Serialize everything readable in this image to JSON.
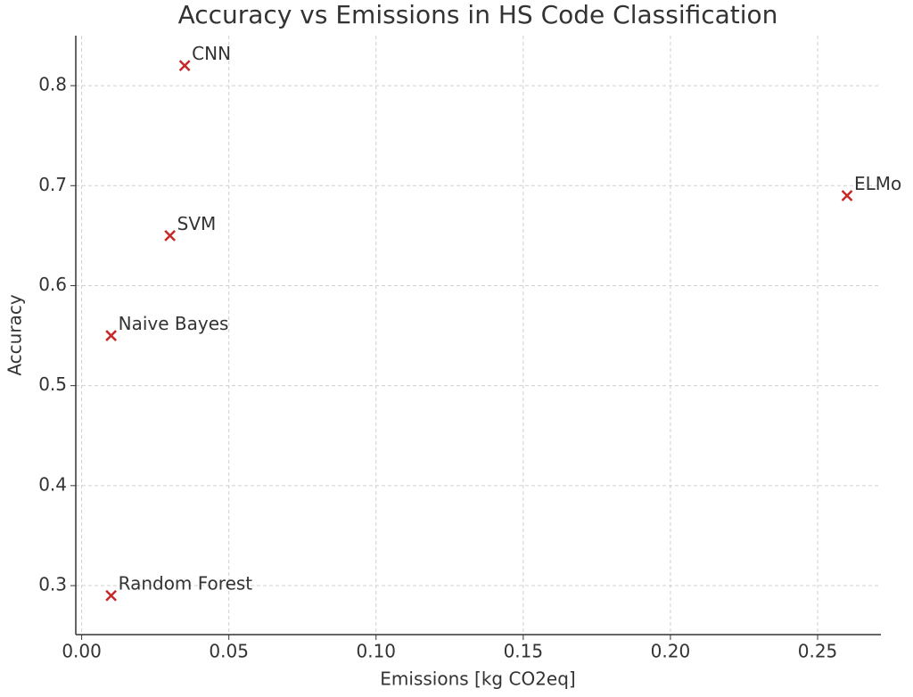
{
  "chart_data": {
    "type": "scatter",
    "title": "Accuracy vs Emissions in HS Code Classification",
    "x_label": "Emissions [kg CO2eq]",
    "y_label": "Accuracy",
    "labels": [
      "CNN",
      "SVM",
      "Naive Bayes",
      "Random Forest",
      "ELMo"
    ],
    "x": [
      0.035,
      0.03,
      0.01,
      0.01,
      0.26
    ],
    "values": [
      0.82,
      0.65,
      0.55,
      0.29,
      0.69
    ],
    "color": "#c62828",
    "marker": "x",
    "xlim": [
      -0.002,
      0.2715
    ],
    "ylim": [
      0.251,
      0.85
    ],
    "xticks": [
      {
        "value": 0,
        "label": "0.00"
      },
      {
        "value": 0.05,
        "label": "0.05"
      },
      {
        "value": 0.1,
        "label": "0.10"
      },
      {
        "value": 0.15,
        "label": "0.15"
      },
      {
        "value": 0.2,
        "label": "0.20"
      },
      {
        "value": 0.25,
        "label": "0.25"
      }
    ],
    "yticks": [
      0.3,
      0.4,
      0.5,
      0.6,
      0.7,
      0.8
    ],
    "grid": true
  }
}
